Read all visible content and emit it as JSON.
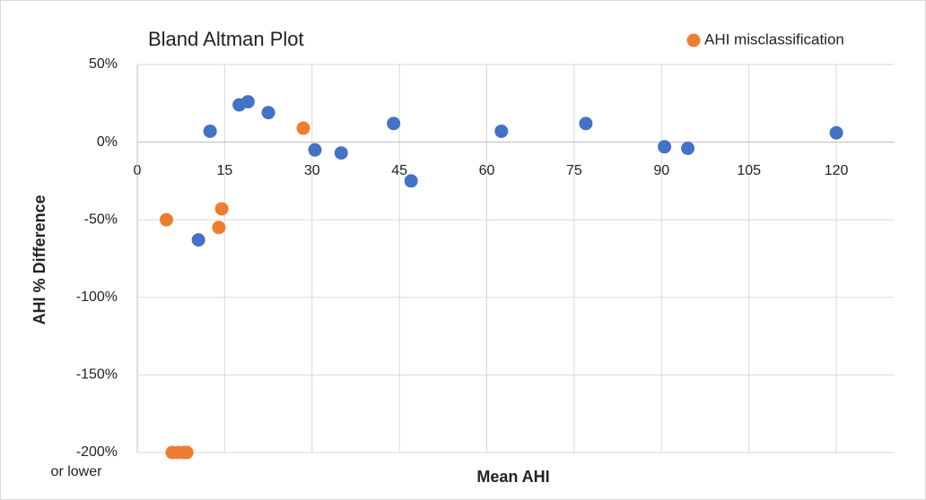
{
  "chart_data": {
    "type": "scatter",
    "title": "Bland Altman Plot",
    "x_label": "Mean AHI",
    "y_label": "AHI % Difference",
    "annotations": [
      "or lower"
    ],
    "xlim": [
      0,
      130
    ],
    "xticks": [
      0,
      15,
      30,
      45,
      60,
      75,
      90,
      105,
      120
    ],
    "ylim": [
      -200,
      50
    ],
    "yticks": [
      {
        "value": 50,
        "label": "50%"
      },
      {
        "value": 0,
        "label": "0%"
      },
      {
        "value": -50,
        "label": "-50%"
      },
      {
        "value": -100,
        "label": "-100%"
      },
      {
        "value": -150,
        "label": "-150%"
      },
      {
        "value": -200,
        "label": "-200%"
      }
    ],
    "grid": true,
    "legend": "top-right",
    "series": [
      {
        "color": "#4472c4",
        "x": [
          12.5,
          17.5,
          19,
          22.5,
          30.5,
          35,
          44,
          47,
          62.5,
          77,
          90.5,
          94.5,
          120,
          10.5
        ],
        "values": [
          7,
          24,
          26,
          19,
          -5,
          -7,
          12,
          -25,
          7,
          12,
          -3,
          -4,
          6,
          -63
        ]
      },
      {
        "name": "AHI misclassification",
        "color": "#ed7d31",
        "x": [
          5,
          28.5,
          14.5,
          14,
          6,
          7,
          8,
          8.5
        ],
        "values": [
          -50,
          9,
          -43,
          -55,
          -200,
          -200,
          -200,
          -200
        ]
      }
    ]
  }
}
